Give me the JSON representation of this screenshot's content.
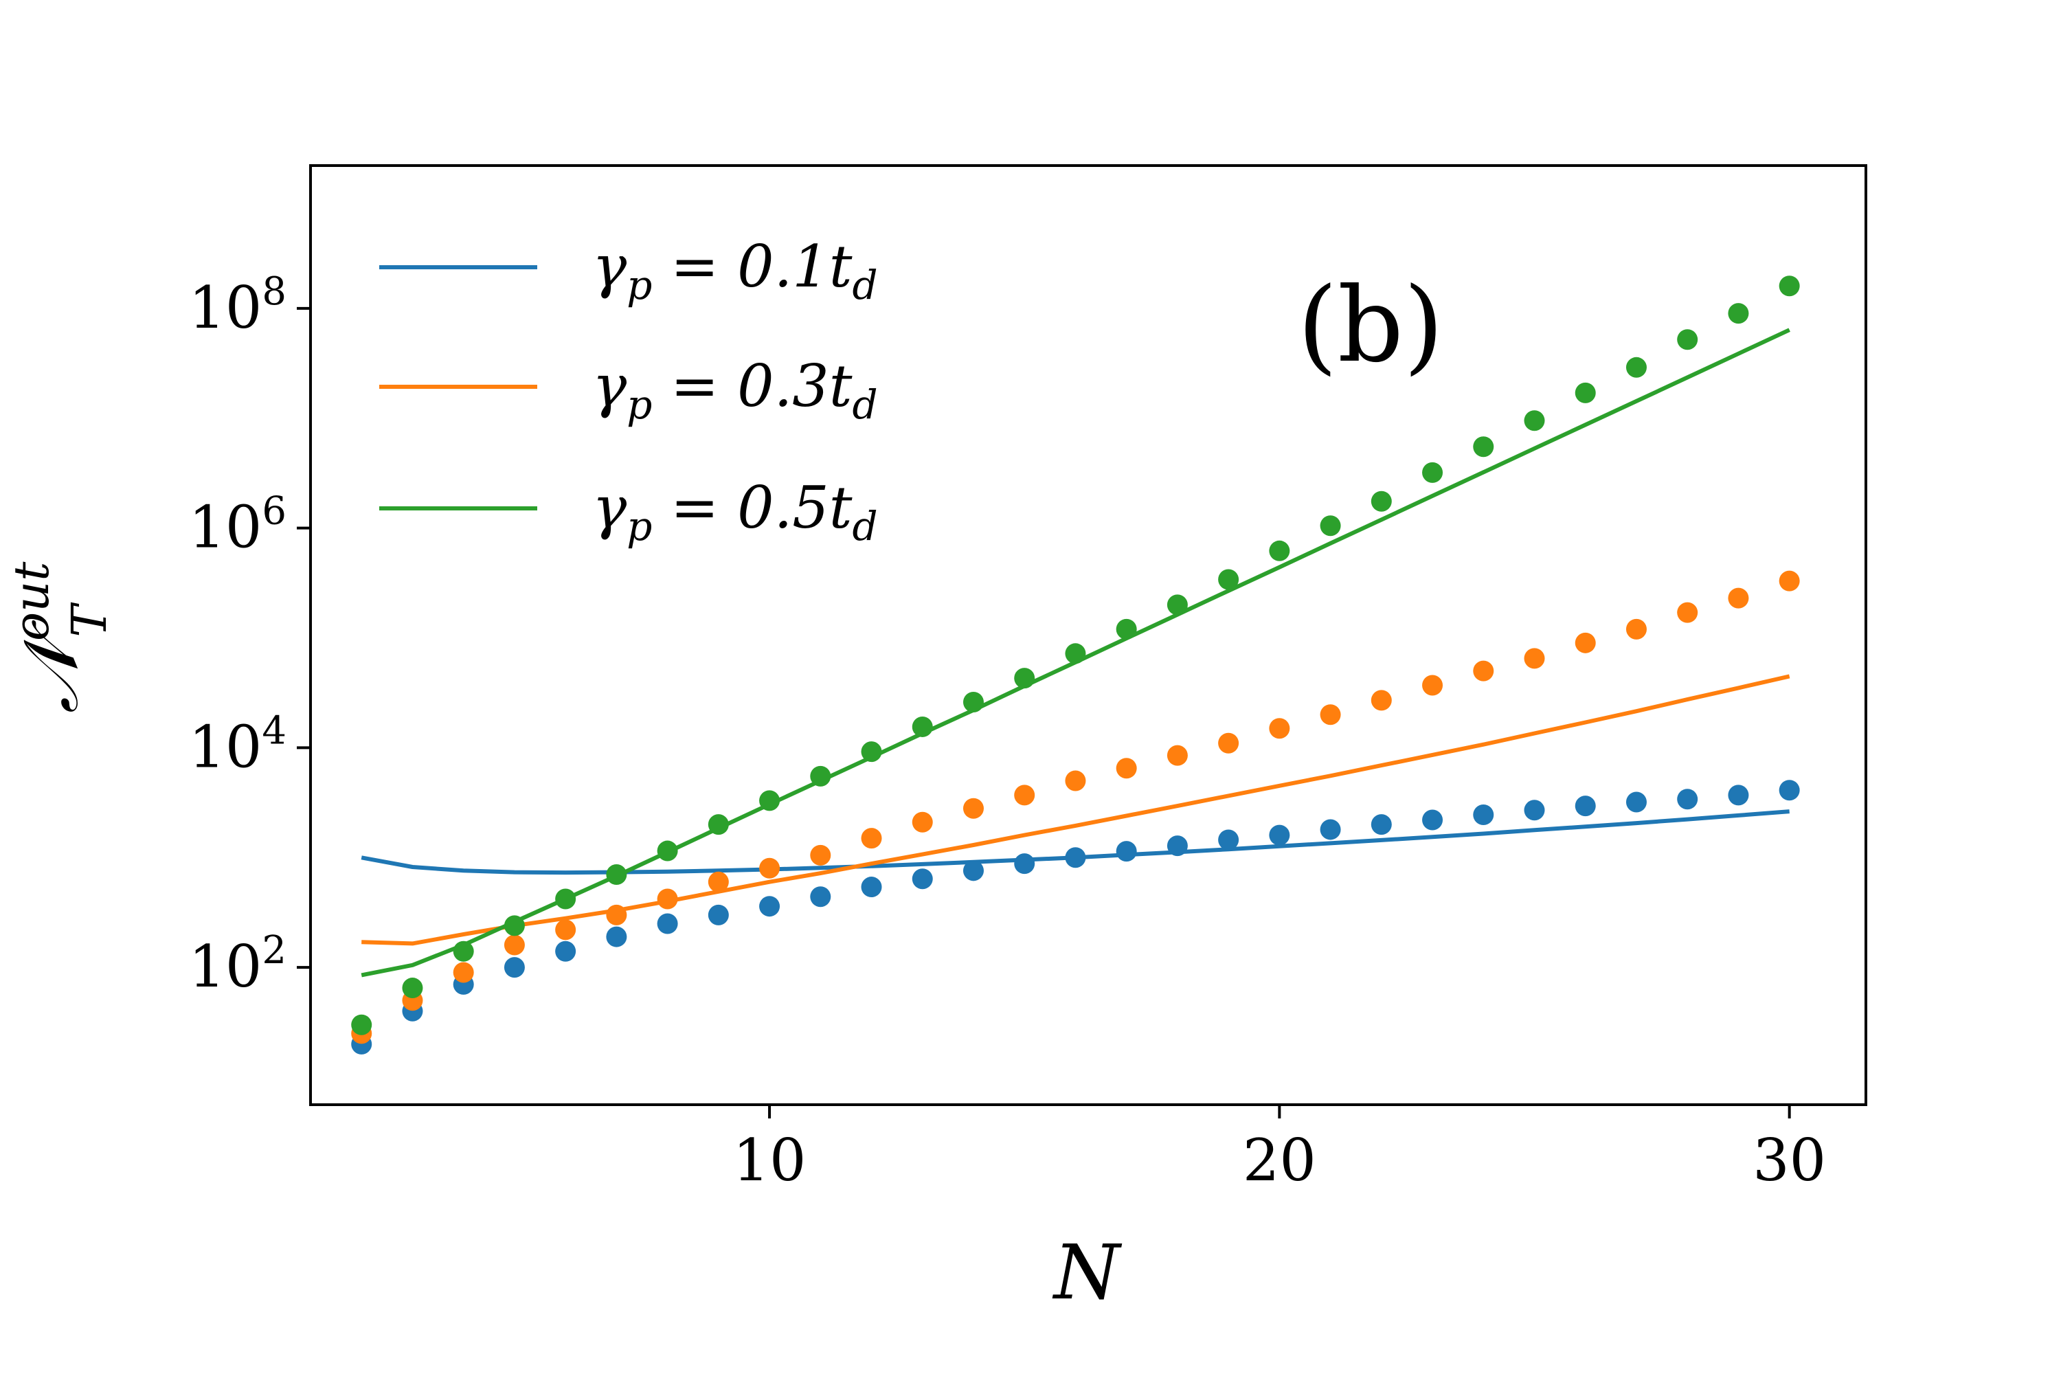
{
  "chart_data": {
    "type": "line",
    "panel_label": "(b)",
    "xlabel": "N",
    "ylabel": "𝒩",
    "ylabel_sup": "out",
    "ylabel_sub": "T",
    "xlim": [
      1,
      31.5
    ],
    "ylim_log10": [
      0.75,
      9.3
    ],
    "yscale": "log",
    "xticks": [
      {
        "value": 10,
        "label": "10"
      },
      {
        "value": 20,
        "label": "20"
      },
      {
        "value": 30,
        "label": "30"
      }
    ],
    "yticks": [
      {
        "log10": 2,
        "base": "10",
        "exp": "2"
      },
      {
        "log10": 4,
        "base": "10",
        "exp": "4"
      },
      {
        "log10": 6,
        "base": "10",
        "exp": "6"
      },
      {
        "log10": 8,
        "base": "10",
        "exp": "8"
      }
    ],
    "legend_position": "top-left",
    "grid": false,
    "series": [
      {
        "name": "γp = 0.1td",
        "legend": {
          "gamma": "γ",
          "sub": "p",
          "eq": " = 0.1t",
          "tsub": "d"
        },
        "color": "#1f77b4",
        "line_x": [
          2,
          3,
          4,
          5,
          6,
          7,
          8,
          9,
          10,
          11,
          12,
          13,
          14,
          15,
          16,
          17,
          18,
          19,
          20,
          21,
          22,
          23,
          24,
          25,
          26,
          27,
          28,
          29,
          30
        ],
        "line_y": [
          1000,
          820,
          760,
          735,
          730,
          735,
          745,
          760,
          780,
          805,
          835,
          870,
          910,
          955,
          1000,
          1060,
          1120,
          1190,
          1270,
          1350,
          1440,
          1540,
          1650,
          1780,
          1910,
          2060,
          2230,
          2420,
          2630
        ],
        "points_x": [
          2,
          3,
          4,
          5,
          6,
          7,
          8,
          9,
          10,
          11,
          12,
          13,
          14,
          15,
          16,
          17,
          18,
          19,
          20,
          21,
          22,
          23,
          24,
          25,
          26,
          27,
          28,
          29,
          30
        ],
        "points_y": [
          20,
          40,
          70,
          100,
          140,
          190,
          250,
          300,
          360,
          440,
          540,
          640,
          760,
          880,
          1000,
          1140,
          1280,
          1450,
          1600,
          1800,
          2000,
          2200,
          2450,
          2700,
          2950,
          3200,
          3400,
          3700,
          4100
        ]
      },
      {
        "name": "γp = 0.3td",
        "legend": {
          "gamma": "γ",
          "sub": "p",
          "eq": " = 0.3t",
          "tsub": "d"
        },
        "color": "#ff7f0e",
        "line_x": [
          2,
          3,
          4,
          5,
          6,
          7,
          8,
          9,
          10,
          11,
          12,
          13,
          14,
          15,
          16,
          17,
          18,
          19,
          20,
          21,
          22,
          23,
          24,
          25,
          26,
          27,
          28,
          29,
          30
        ],
        "line_y": [
          170,
          165,
          200,
          240,
          280,
          330,
          400,
          490,
          600,
          720,
          880,
          1070,
          1300,
          1600,
          1950,
          2400,
          2950,
          3650,
          4500,
          5550,
          6900,
          8600,
          10700,
          13500,
          17000,
          21500,
          27500,
          35000,
          44700
        ],
        "points_x": [
          2,
          3,
          4,
          5,
          6,
          7,
          8,
          9,
          10,
          11,
          12,
          13,
          14,
          15,
          16,
          17,
          18,
          19,
          20,
          21,
          22,
          23,
          24,
          25,
          26,
          27,
          28,
          29,
          30
        ],
        "points_y": [
          25,
          50,
          90,
          160,
          220,
          300,
          420,
          600,
          800,
          1050,
          1500,
          2100,
          2800,
          3700,
          5000,
          6500,
          8500,
          11000,
          15000,
          20000,
          27000,
          37000,
          50000,
          65000,
          90000,
          120000,
          170000,
          230000,
          330000
        ]
      },
      {
        "name": "γp = 0.5td",
        "legend": {
          "gamma": "γ",
          "sub": "p",
          "eq": " = 0.5t",
          "tsub": "d"
        },
        "color": "#2ca02c",
        "line_x": [
          2,
          3,
          4,
          5,
          6,
          7,
          8,
          9,
          10,
          11,
          12,
          13,
          14,
          15,
          16,
          17,
          18,
          19,
          20,
          21,
          22,
          23,
          24,
          25,
          26,
          27,
          28,
          29,
          30
        ],
        "line_y": [
          85,
          105,
          160,
          260,
          420,
          680,
          1120,
          1850,
          3050,
          5000,
          8200,
          13500,
          22000,
          36500,
          60000,
          99000,
          163000,
          268000,
          440000,
          725000,
          1190000,
          1960000,
          3220000,
          5300000,
          8700000,
          14300000,
          23500000,
          38700000,
          63700000
        ],
        "points_x": [
          2,
          3,
          4,
          5,
          6,
          7,
          8,
          9,
          10,
          11,
          12,
          13,
          14,
          15,
          16,
          17,
          18,
          19,
          20,
          21,
          22,
          23,
          24,
          25,
          26,
          27,
          28,
          29,
          30
        ],
        "points_y": [
          30,
          65,
          140,
          240,
          420,
          700,
          1150,
          2000,
          3300,
          5500,
          9200,
          15500,
          26000,
          43000,
          72000,
          120000,
          200000,
          340000,
          620000,
          1050000,
          1750000,
          3200000,
          5500000,
          9500000,
          17000000,
          29000000,
          52000000,
          90000000,
          160000000
        ]
      }
    ]
  }
}
